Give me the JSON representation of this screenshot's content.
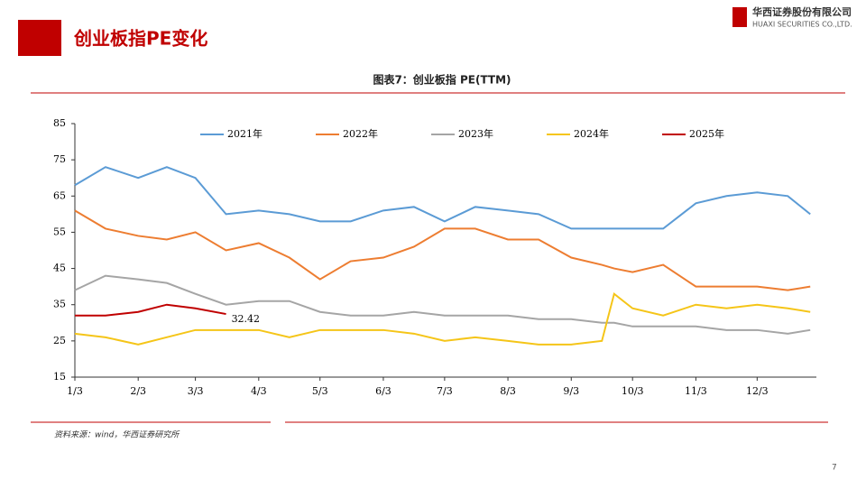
{
  "page": {
    "heading": "创业板指PE变化",
    "logo_cn": "华西证券股份有限公司",
    "logo_en": "HUAXI SECURITIES CO.,LTD.",
    "source": "资料来源：wind，华西证券研究所",
    "page_number": "7"
  },
  "chart_data": {
    "type": "line",
    "title": "图表7：创业板指 PE(TTM)",
    "x": [
      2,
      17,
      33,
      47,
      61,
      76,
      92,
      107,
      122,
      137,
      153,
      168,
      183,
      198,
      214,
      229,
      245,
      260,
      266,
      275,
      290,
      306,
      321,
      336,
      351,
      362
    ],
    "xlim": [
      2,
      365
    ],
    "xticks": [
      {
        "value": 2,
        "label": "1/3"
      },
      {
        "value": 33,
        "label": "2/3"
      },
      {
        "value": 61,
        "label": "3/3"
      },
      {
        "value": 92,
        "label": "4/3"
      },
      {
        "value": 122,
        "label": "5/3"
      },
      {
        "value": 153,
        "label": "6/3"
      },
      {
        "value": 183,
        "label": "7/3"
      },
      {
        "value": 214,
        "label": "8/3"
      },
      {
        "value": 245,
        "label": "9/3"
      },
      {
        "value": 275,
        "label": "10/3"
      },
      {
        "value": 306,
        "label": "11/3"
      },
      {
        "value": 336,
        "label": "12/3"
      }
    ],
    "ylim": [
      15,
      85
    ],
    "yticks": [
      15,
      25,
      35,
      45,
      55,
      65,
      75,
      85
    ],
    "series": [
      {
        "name": "2021年",
        "color": "#5b9bd5",
        "values": [
          68,
          73,
          70,
          73,
          70,
          60,
          61,
          60,
          58,
          58,
          61,
          62,
          58,
          62,
          61,
          60,
          56,
          56,
          56,
          56,
          56,
          63,
          65,
          66,
          65,
          60
        ]
      },
      {
        "name": "2022年",
        "color": "#ed7d31",
        "values": [
          61,
          56,
          54,
          53,
          55,
          50,
          52,
          48,
          42,
          47,
          48,
          51,
          56,
          56,
          53,
          53,
          48,
          46,
          45,
          44,
          46,
          40,
          40,
          40,
          39,
          40
        ]
      },
      {
        "name": "2023年",
        "color": "#a5a5a5",
        "values": [
          39,
          43,
          42,
          41,
          38,
          35,
          36,
          36,
          33,
          32,
          32,
          33,
          32,
          32,
          32,
          31,
          31,
          30,
          30,
          29,
          29,
          29,
          28,
          28,
          27,
          28
        ]
      },
      {
        "name": "2024年",
        "color": "#f5c518",
        "values": [
          27,
          26,
          24,
          26,
          28,
          28,
          28,
          26,
          28,
          28,
          28,
          27,
          25,
          26,
          25,
          24,
          24,
          25,
          38,
          34,
          32,
          35,
          34,
          35,
          34,
          33
        ]
      },
      {
        "name": "2025年",
        "color": "#c00000",
        "values": [
          32,
          32,
          33,
          35,
          34,
          32.42,
          null,
          null,
          null,
          null,
          null,
          null,
          null,
          null,
          null,
          null,
          null,
          null,
          null,
          null,
          null,
          null,
          null,
          null,
          null,
          null
        ]
      }
    ]
  }
}
